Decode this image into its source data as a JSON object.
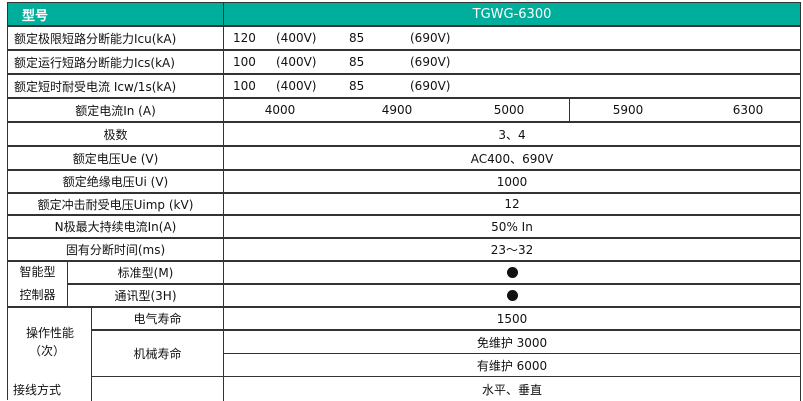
{
  "header": {
    "label": "型号",
    "model": "TGWG-6300",
    "color": "#00ae9c"
  },
  "rows": {
    "icu": {
      "label": "额定极限短路分断能力Icu(kA)",
      "v1": "120",
      "u1": "(400V)",
      "v2": "85",
      "u2": "(690V)"
    },
    "ics": {
      "label": "额定运行短路分断能力Ics(kA)",
      "v1": "100",
      "u1": "(400V)",
      "v2": "85",
      "u2": "(690V)"
    },
    "icw": {
      "label": "额定短时耐受电流 Icw/1s(kA)",
      "v1": "100",
      "u1": "(400V)",
      "v2": "85",
      "u2": "(690V)"
    },
    "in": {
      "label": "额定电流In (A)",
      "values": [
        "4000",
        "4900",
        "5000",
        "5900",
        "6300"
      ]
    },
    "poles": {
      "label": "极数",
      "value": "3、4"
    },
    "ue": {
      "label": "额定电压Ue (V)",
      "value": "AC400、690V"
    },
    "ui": {
      "label": "额定绝缘电压Ui (V)",
      "value": "1000"
    },
    "uimp": {
      "label": "额定冲击耐受电压Uimp (kV)",
      "value": "12"
    },
    "nmax": {
      "label": "N极最大持续电流In(A)",
      "value": "50% In"
    },
    "break_time": {
      "label": "固有分断时间(ms)",
      "value": "23～32"
    }
  },
  "controller": {
    "label_line1": "智能型",
    "label_line2": "控制器",
    "standard": "标准型(M)",
    "comm": "通讯型(3H)",
    "standard_mark": "filled-circle",
    "comm_mark": "filled-circle"
  },
  "operation": {
    "label_line1": "操作性能",
    "label_line2": "（次）",
    "electrical": "电气寿命",
    "electrical_value": "1500",
    "mechanical": "机械寿命",
    "maint_free": "免维护  3000",
    "maint": "有维护  6000"
  },
  "wiring": {
    "label": "接线方式",
    "value": "水平、垂直"
  }
}
